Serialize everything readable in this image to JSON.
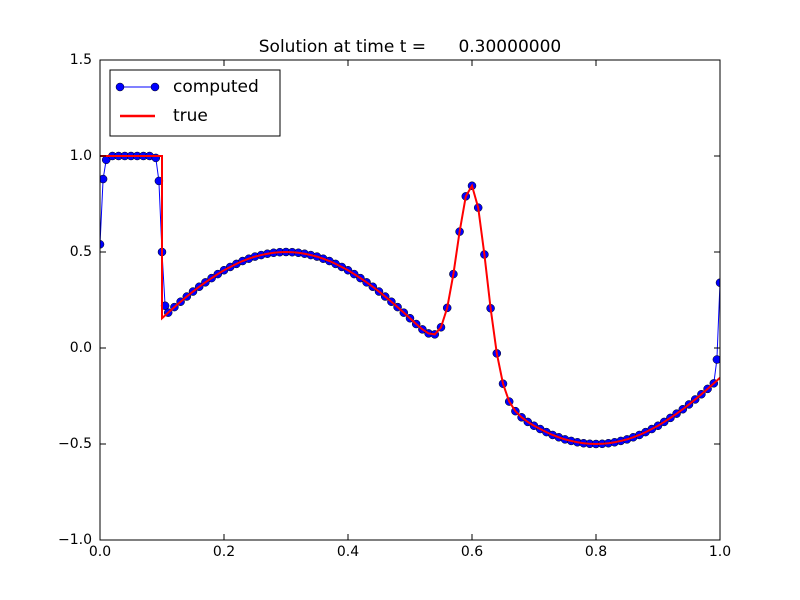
{
  "chart_data": {
    "type": "line",
    "title": "Solution at time t =      0.30000000",
    "xlim": [
      0,
      1
    ],
    "ylim": [
      -1,
      1.5
    ],
    "xticks": [
      {
        "value": 0,
        "label": "0.0"
      },
      0.2,
      0.4,
      0.6,
      0.8,
      {
        "value": 1,
        "label": "1.0"
      }
    ],
    "yticks": [
      {
        "value": -1,
        "label": "−1.0"
      },
      {
        "value": -0.5,
        "label": "−0.5"
      },
      {
        "value": 0,
        "label": "0.0"
      },
      0.5,
      {
        "value": 1,
        "label": "1.0"
      },
      1.5
    ],
    "legend": "upper left",
    "series": [
      {
        "name": "computed",
        "color": "#0000ff",
        "marker": "o",
        "x": [
          0,
          0.005,
          0.01,
          0.02,
          0.03,
          0.04,
          0.05,
          0.06,
          0.07,
          0.08,
          0.09,
          0.095,
          0.1,
          0.105,
          0.11,
          0.12,
          0.13,
          0.14,
          0.15,
          0.16,
          0.17,
          0.18,
          0.19,
          0.2,
          0.21,
          0.22,
          0.23,
          0.24,
          0.25,
          0.26,
          0.27,
          0.28,
          0.29,
          0.3,
          0.31,
          0.32,
          0.33,
          0.34,
          0.35,
          0.36,
          0.37,
          0.38,
          0.39,
          0.4,
          0.41,
          0.42,
          0.43,
          0.44,
          0.45,
          0.46,
          0.47,
          0.48,
          0.49,
          0.5,
          0.51,
          0.52,
          0.53,
          0.54,
          0.55,
          0.56,
          0.57,
          0.58,
          0.59,
          0.6,
          0.61,
          0.62,
          0.63,
          0.64,
          0.65,
          0.66,
          0.67,
          0.68,
          0.69,
          0.7,
          0.71,
          0.72,
          0.73,
          0.74,
          0.75,
          0.76,
          0.77,
          0.78,
          0.79,
          0.8,
          0.81,
          0.82,
          0.83,
          0.84,
          0.85,
          0.86,
          0.87,
          0.88,
          0.89,
          0.9,
          0.91,
          0.92,
          0.93,
          0.94,
          0.95,
          0.96,
          0.97,
          0.98,
          0.99,
          0.995,
          1
        ],
        "values": [
          0.54,
          0.88,
          0.98,
          1,
          1,
          1,
          1,
          1,
          1,
          1,
          0.99,
          0.87,
          0.5,
          0.22,
          0.184,
          0.213,
          0.241,
          0.268,
          0.294,
          0.319,
          0.342,
          0.364,
          0.385,
          0.405,
          0.422,
          0.438,
          0.453,
          0.465,
          0.476,
          0.484,
          0.491,
          0.496,
          0.499,
          0.5,
          0.499,
          0.496,
          0.491,
          0.484,
          0.476,
          0.465,
          0.453,
          0.438,
          0.422,
          0.405,
          0.385,
          0.364,
          0.342,
          0.319,
          0.294,
          0.268,
          0.241,
          0.213,
          0.184,
          0.155,
          0.125,
          0.097,
          0.076,
          0.071,
          0.108,
          0.209,
          0.385,
          0.606,
          0.79,
          0.845,
          0.731,
          0.487,
          0.207,
          -0.028,
          -0.186,
          -0.279,
          -0.329,
          -0.361,
          -0.385,
          -0.405,
          -0.422,
          -0.438,
          -0.453,
          -0.465,
          -0.476,
          -0.484,
          -0.491,
          -0.496,
          -0.499,
          -0.5,
          -0.499,
          -0.496,
          -0.491,
          -0.484,
          -0.476,
          -0.465,
          -0.453,
          -0.438,
          -0.422,
          -0.405,
          -0.385,
          -0.364,
          -0.342,
          -0.319,
          -0.294,
          -0.268,
          -0.241,
          -0.213,
          -0.184,
          -0.06,
          0.34
        ]
      },
      {
        "name": "true",
        "color": "#ff0000",
        "x": [
          0,
          0.01,
          0.02,
          0.03,
          0.04,
          0.05,
          0.06,
          0.07,
          0.08,
          0.09,
          0.1,
          0.1,
          0.11,
          0.12,
          0.13,
          0.14,
          0.15,
          0.16,
          0.17,
          0.18,
          0.19,
          0.2,
          0.21,
          0.22,
          0.23,
          0.24,
          0.25,
          0.26,
          0.27,
          0.28,
          0.29,
          0.3,
          0.31,
          0.32,
          0.33,
          0.34,
          0.35,
          0.36,
          0.37,
          0.38,
          0.39,
          0.4,
          0.41,
          0.42,
          0.43,
          0.44,
          0.45,
          0.46,
          0.47,
          0.48,
          0.49,
          0.5,
          0.51,
          0.52,
          0.53,
          0.54,
          0.55,
          0.56,
          0.57,
          0.58,
          0.59,
          0.6,
          0.61,
          0.62,
          0.63,
          0.64,
          0.65,
          0.66,
          0.67,
          0.68,
          0.69,
          0.7,
          0.71,
          0.72,
          0.73,
          0.74,
          0.75,
          0.76,
          0.77,
          0.78,
          0.79,
          0.8,
          0.81,
          0.82,
          0.83,
          0.84,
          0.85,
          0.86,
          0.87,
          0.88,
          0.89,
          0.9,
          0.91,
          0.92,
          0.93,
          0.94,
          0.95,
          0.96,
          0.97,
          0.98,
          0.99,
          1
        ],
        "values": [
          1,
          1,
          1,
          1,
          1,
          1,
          1,
          1,
          1,
          1,
          1,
          0.155,
          0.184,
          0.213,
          0.241,
          0.268,
          0.294,
          0.319,
          0.342,
          0.364,
          0.385,
          0.405,
          0.422,
          0.438,
          0.453,
          0.465,
          0.476,
          0.484,
          0.491,
          0.496,
          0.499,
          0.5,
          0.499,
          0.496,
          0.491,
          0.484,
          0.476,
          0.465,
          0.453,
          0.438,
          0.422,
          0.405,
          0.385,
          0.364,
          0.342,
          0.319,
          0.294,
          0.268,
          0.241,
          0.213,
          0.184,
          0.155,
          0.125,
          0.097,
          0.076,
          0.071,
          0.108,
          0.209,
          0.385,
          0.606,
          0.79,
          0.845,
          0.731,
          0.487,
          0.207,
          -0.028,
          -0.186,
          -0.279,
          -0.329,
          -0.361,
          -0.385,
          -0.405,
          -0.422,
          -0.438,
          -0.453,
          -0.465,
          -0.476,
          -0.484,
          -0.491,
          -0.496,
          -0.499,
          -0.5,
          -0.499,
          -0.496,
          -0.491,
          -0.484,
          -0.476,
          -0.465,
          -0.453,
          -0.438,
          -0.422,
          -0.405,
          -0.385,
          -0.364,
          -0.342,
          -0.319,
          -0.294,
          -0.268,
          -0.241,
          -0.213,
          -0.184,
          -0.155
        ]
      }
    ]
  }
}
